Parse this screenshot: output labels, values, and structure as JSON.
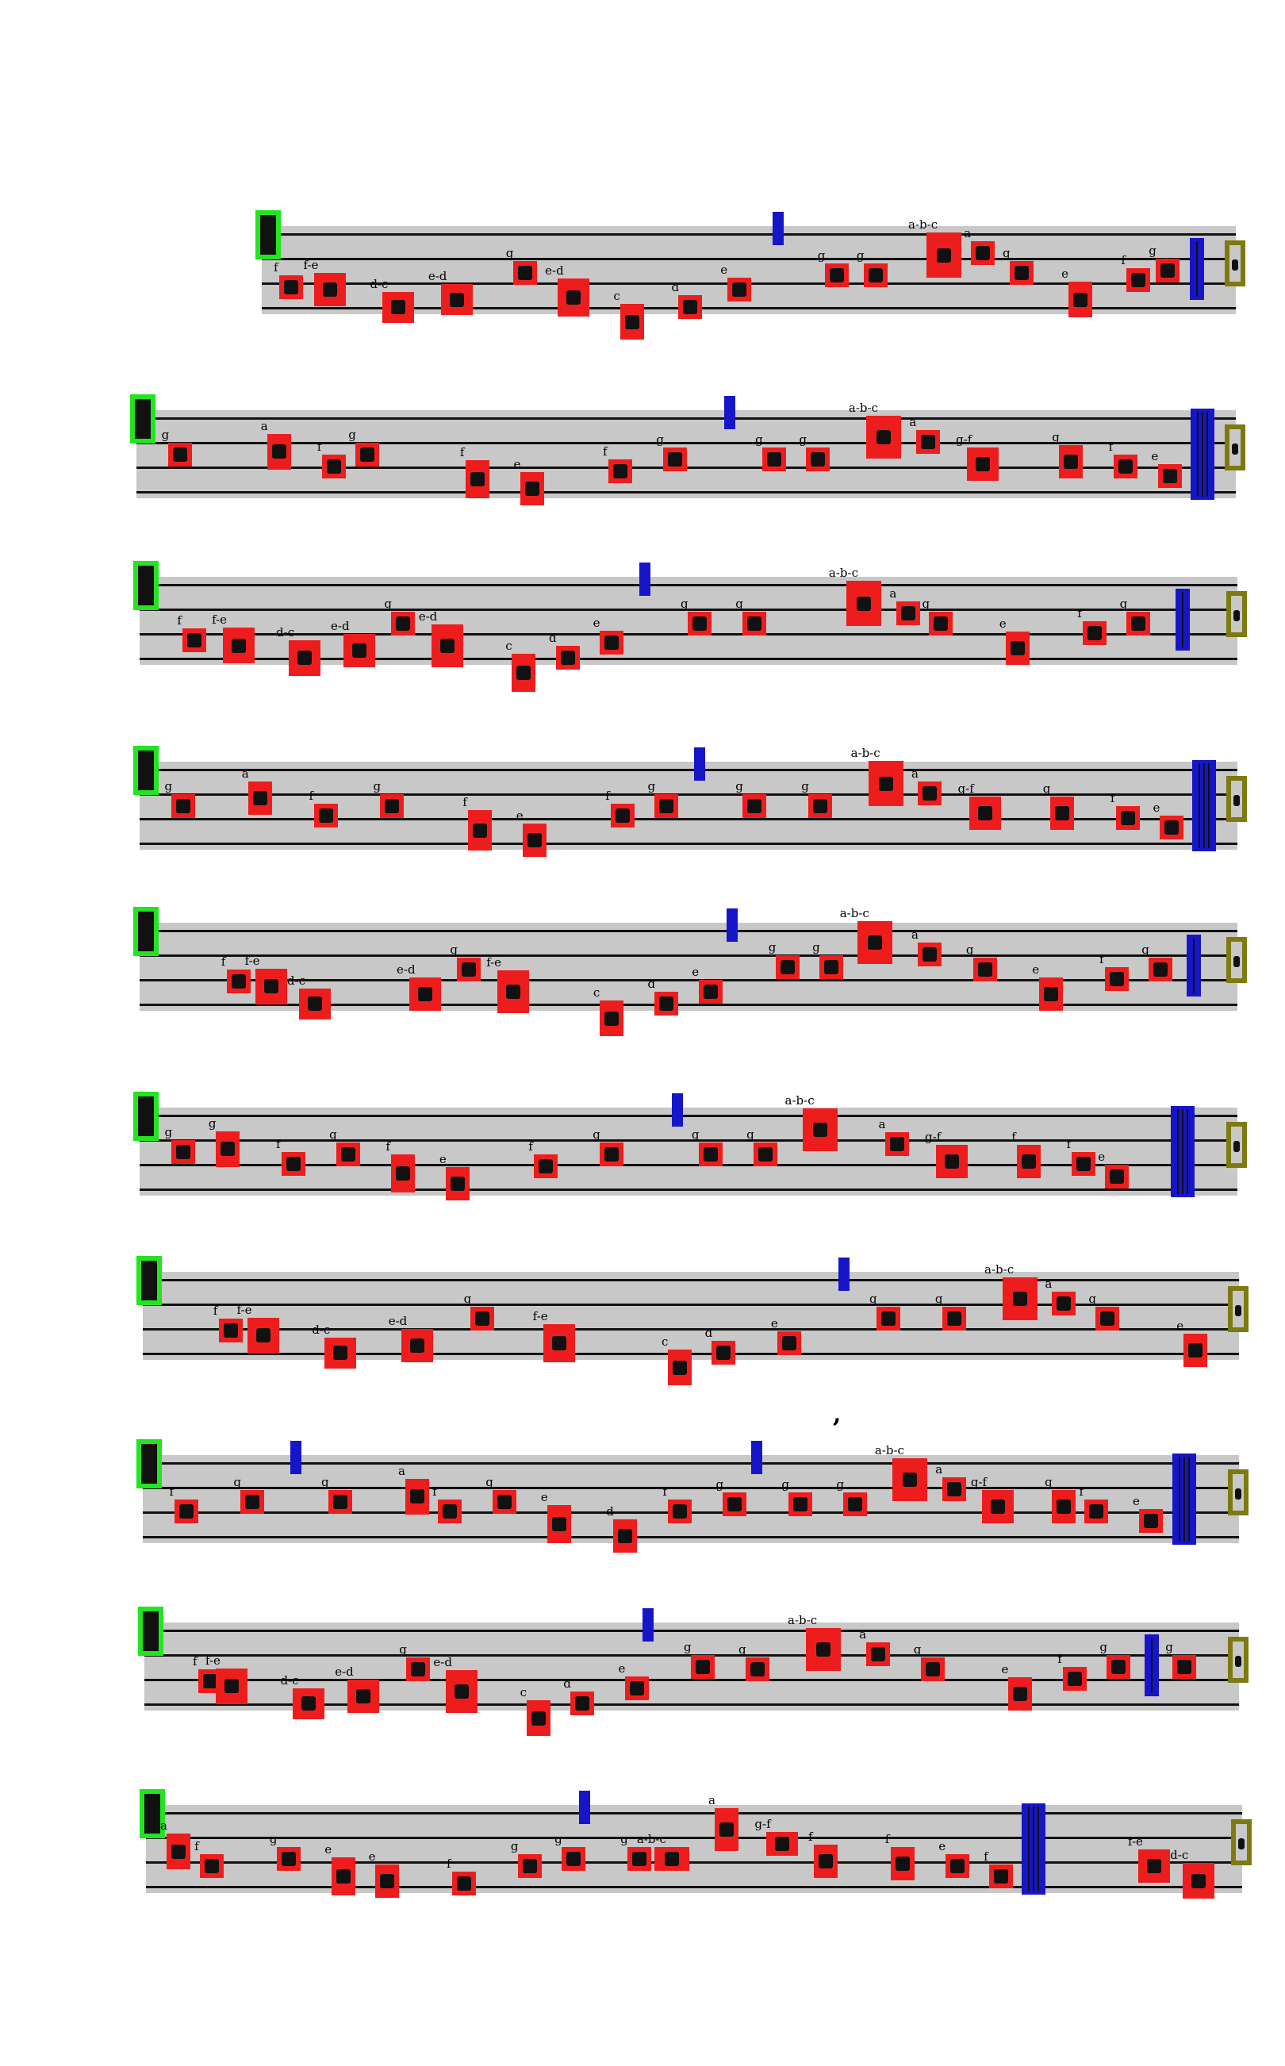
{
  "colors": {
    "neume_box": "#ee1d1d",
    "clef_box": "#22e51f",
    "division_box": "#1616c8",
    "custos_box": "#7d7a10",
    "staff_band": "#c8c8c8",
    "ink": "#111111"
  },
  "legend_mark": ",",
  "staves": [
    {
      "neumes": [
        {
          "label": "f"
        },
        {
          "label": "f-e"
        },
        {
          "label": "d-c"
        },
        {
          "label": "e-d"
        },
        {
          "label": "g"
        },
        {
          "label": "e-d"
        },
        {
          "label": "c"
        },
        {
          "label": "d"
        },
        {
          "label": "e"
        },
        {
          "label": "g"
        },
        {
          "label": "g"
        },
        {
          "label": "a-b-c"
        },
        {
          "label": "a"
        },
        {
          "label": "g"
        },
        {
          "label": "e"
        },
        {
          "label": "f"
        },
        {
          "label": "g"
        }
      ]
    },
    {
      "neumes": [
        {
          "label": "g"
        },
        {
          "label": "a"
        },
        {
          "label": "f"
        },
        {
          "label": "g"
        },
        {
          "label": "f"
        },
        {
          "label": "e"
        },
        {
          "label": "f"
        },
        {
          "label": "g"
        },
        {
          "label": "g"
        },
        {
          "label": "g"
        },
        {
          "label": "a-b-c"
        },
        {
          "label": "a"
        },
        {
          "label": "g-f"
        },
        {
          "label": "g"
        },
        {
          "label": "f"
        },
        {
          "label": "e"
        }
      ]
    },
    {
      "neumes": [
        {
          "label": "f"
        },
        {
          "label": "f-e"
        },
        {
          "label": "d-c"
        },
        {
          "label": "e-d"
        },
        {
          "label": "g"
        },
        {
          "label": "e-d"
        },
        {
          "label": "c"
        },
        {
          "label": "d"
        },
        {
          "label": "e"
        },
        {
          "label": "g"
        },
        {
          "label": "g"
        },
        {
          "label": "a-b-c"
        },
        {
          "label": "a"
        },
        {
          "label": "g"
        },
        {
          "label": "e"
        },
        {
          "label": "f"
        },
        {
          "label": "g"
        }
      ]
    },
    {
      "neumes": [
        {
          "label": "g"
        },
        {
          "label": "a"
        },
        {
          "label": "f"
        },
        {
          "label": "g"
        },
        {
          "label": "f"
        },
        {
          "label": "e"
        },
        {
          "label": "f"
        },
        {
          "label": "g"
        },
        {
          "label": "g"
        },
        {
          "label": "g"
        },
        {
          "label": "a-b-c"
        },
        {
          "label": "a"
        },
        {
          "label": "g-f"
        },
        {
          "label": "g"
        },
        {
          "label": "f"
        },
        {
          "label": "e"
        }
      ]
    },
    {
      "neumes": [
        {
          "label": "f"
        },
        {
          "label": "f-e"
        },
        {
          "label": "d-c"
        },
        {
          "label": "e-d"
        },
        {
          "label": "g"
        },
        {
          "label": "f-e"
        },
        {
          "label": "c"
        },
        {
          "label": "d"
        },
        {
          "label": "e"
        },
        {
          "label": "g"
        },
        {
          "label": "g"
        },
        {
          "label": "a-b-c"
        },
        {
          "label": "a"
        },
        {
          "label": "g"
        },
        {
          "label": "e"
        },
        {
          "label": "f"
        },
        {
          "label": "g"
        }
      ]
    },
    {
      "neumes": [
        {
          "label": "g"
        },
        {
          "label": "g"
        },
        {
          "label": "f"
        },
        {
          "label": "g"
        },
        {
          "label": "f"
        },
        {
          "label": "e"
        },
        {
          "label": "f"
        },
        {
          "label": "g"
        },
        {
          "label": "g"
        },
        {
          "label": "g"
        },
        {
          "label": "a-b-c"
        },
        {
          "label": "a"
        },
        {
          "label": "g-f"
        },
        {
          "label": "f"
        },
        {
          "label": "f"
        },
        {
          "label": "e"
        }
      ]
    },
    {
      "neumes": [
        {
          "label": "f"
        },
        {
          "label": "f-e"
        },
        {
          "label": "d-c"
        },
        {
          "label": "e-d"
        },
        {
          "label": "g"
        },
        {
          "label": "f-e"
        },
        {
          "label": "c"
        },
        {
          "label": "d"
        },
        {
          "label": "e"
        },
        {
          "label": "g"
        },
        {
          "label": "g"
        },
        {
          "label": "a-b-c"
        },
        {
          "label": "a"
        },
        {
          "label": "g"
        },
        {
          "label": "e"
        }
      ]
    },
    {
      "neumes": [
        {
          "label": "f"
        },
        {
          "label": "g"
        },
        {
          "label": "g"
        },
        {
          "label": "a"
        },
        {
          "label": "f"
        },
        {
          "label": "g"
        },
        {
          "label": "e"
        },
        {
          "label": "d"
        },
        {
          "label": "f"
        },
        {
          "label": "g"
        },
        {
          "label": "g"
        },
        {
          "label": "g"
        },
        {
          "label": "a-b-c"
        },
        {
          "label": "a"
        },
        {
          "label": "g-f"
        },
        {
          "label": "g"
        },
        {
          "label": "f"
        },
        {
          "label": "e"
        }
      ]
    },
    {
      "neumes": [
        {
          "label": "f"
        },
        {
          "label": "f-e"
        },
        {
          "label": "d-c"
        },
        {
          "label": "e-d"
        },
        {
          "label": "g"
        },
        {
          "label": "e-d"
        },
        {
          "label": "c"
        },
        {
          "label": "d"
        },
        {
          "label": "e"
        },
        {
          "label": "g"
        },
        {
          "label": "g"
        },
        {
          "label": "a-b-c"
        },
        {
          "label": "a"
        },
        {
          "label": "g"
        },
        {
          "label": "e"
        },
        {
          "label": "f"
        },
        {
          "label": "g"
        },
        {
          "label": "g"
        }
      ]
    },
    {
      "neumes": [
        {
          "label": "a"
        },
        {
          "label": "f"
        },
        {
          "label": "g"
        },
        {
          "label": "e"
        },
        {
          "label": "e"
        },
        {
          "label": "f"
        },
        {
          "label": "g"
        },
        {
          "label": "g"
        },
        {
          "label": "g"
        },
        {
          "label": "a-b-c"
        },
        {
          "label": "a"
        },
        {
          "label": "g-f"
        },
        {
          "label": "f"
        },
        {
          "label": "f"
        },
        {
          "label": "e"
        },
        {
          "label": "f"
        },
        {
          "label": "f-e"
        },
        {
          "label": "d-c"
        }
      ]
    }
  ]
}
